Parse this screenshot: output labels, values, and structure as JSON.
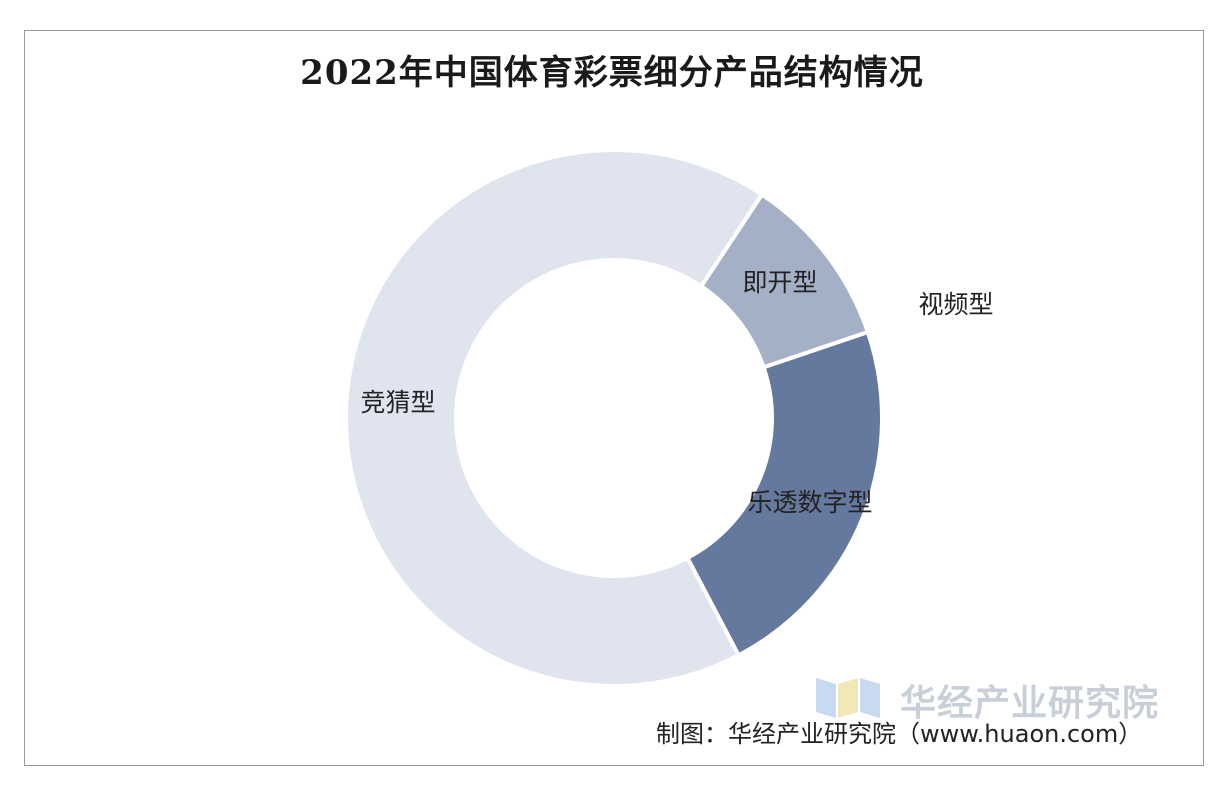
{
  "chart_data": {
    "type": "pie",
    "title": "2022年中国体育彩票细分产品结构情况",
    "slices": [
      {
        "label": "即开型",
        "value": 10.5,
        "color": "#a3b0c6"
      },
      {
        "label": "视频型",
        "value": 0.0,
        "color": "#8e9cb6"
      },
      {
        "label": "乐透数字型",
        "value": 22.5,
        "color": "#65789e"
      },
      {
        "label": "竞猜型",
        "value": 67.0,
        "color": "#dfe4ee"
      }
    ],
    "start_angle_deg": 33.5,
    "legend": "none"
  },
  "watermark": {
    "text": "华经产业研究院"
  },
  "source": {
    "text": "制图：华经产业研究院（www.huaon.com）"
  }
}
